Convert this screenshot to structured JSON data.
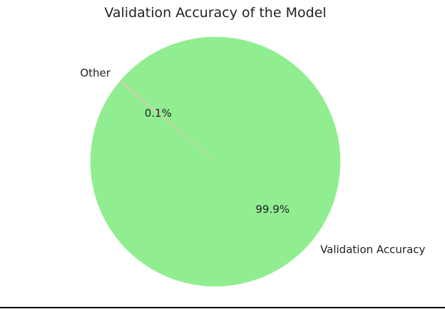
{
  "chart_data": {
    "type": "pie",
    "title": "Validation Accuracy of the Model",
    "slices": [
      {
        "label": "Validation Accuracy",
        "value": 99.9,
        "pct_label": "99.9%",
        "color": "#90ee90"
      },
      {
        "label": "Other",
        "value": 0.1,
        "pct_label": "0.1%",
        "color": "#ffb6c1"
      }
    ],
    "start_angle_deg": 140,
    "legend": "none"
  }
}
